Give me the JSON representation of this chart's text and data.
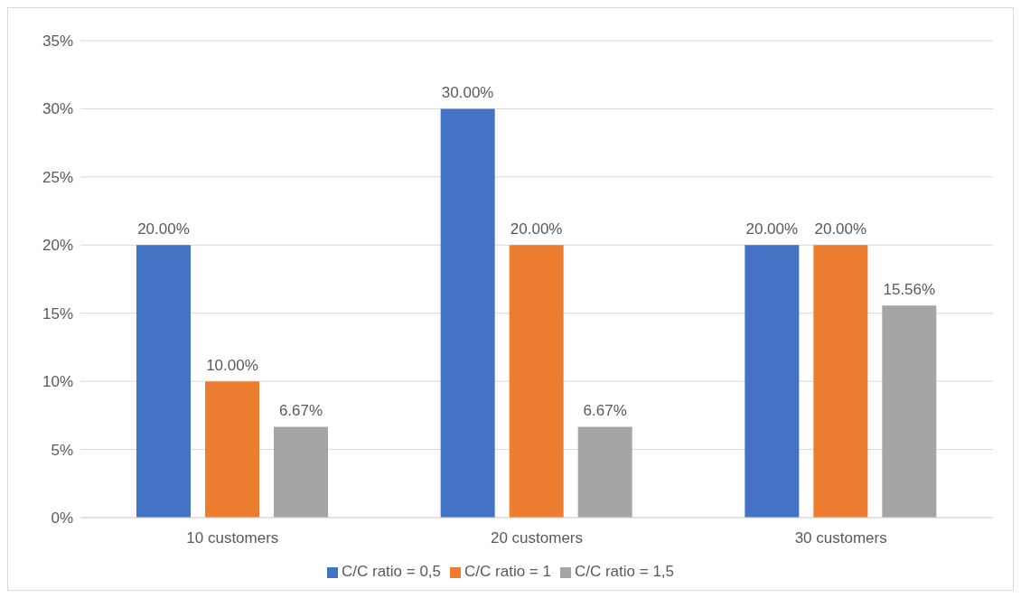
{
  "chart_data": {
    "type": "bar",
    "categories": [
      "10 customers",
      "20 customers",
      "30 customers"
    ],
    "series": [
      {
        "name": "C/C ratio = 0,5",
        "color": "#4472c4",
        "values": [
          20,
          30,
          20
        ],
        "value_labels": [
          "20.00%",
          "30.00%",
          "20.00%"
        ]
      },
      {
        "name": "C/C ratio = 1",
        "color": "#ed7d31",
        "values": [
          10,
          20,
          20
        ],
        "value_labels": [
          "10.00%",
          "20.00%",
          "20.00%"
        ]
      },
      {
        "name": "C/C ratio = 1,5",
        "color": "#a5a5a5",
        "values": [
          6.67,
          6.67,
          15.56
        ],
        "value_labels": [
          "6.67%",
          "6.67%",
          "15.56%"
        ]
      }
    ],
    "ylim": [
      0,
      35
    ],
    "yticks": [
      {
        "value": 0,
        "label": "0%"
      },
      {
        "value": 5,
        "label": "5%"
      },
      {
        "value": 10,
        "label": "10%"
      },
      {
        "value": 15,
        "label": "15%"
      },
      {
        "value": 20,
        "label": "20%"
      },
      {
        "value": 25,
        "label": "25%"
      },
      {
        "value": 30,
        "label": "30%"
      },
      {
        "value": 35,
        "label": "35%"
      }
    ],
    "grid": "y",
    "legend": "bottom"
  }
}
